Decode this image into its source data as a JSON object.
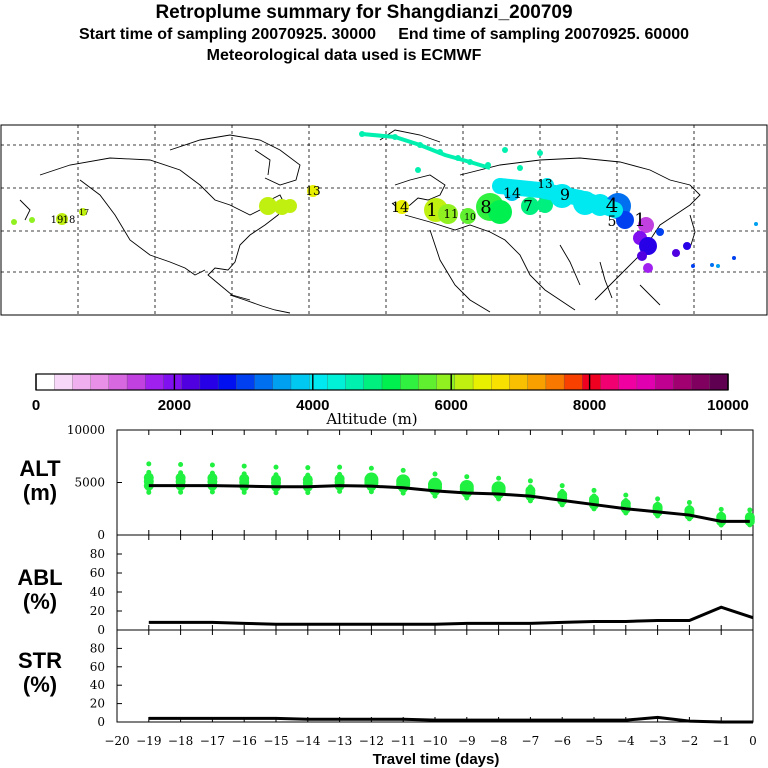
{
  "header": {
    "title": "Retroplume summary for Shangdianzi_200709",
    "sampling_line": "Start time of sampling 20070925. 30000     End time of sampling 20070925. 60000",
    "met_line": "Meteorological data used is ECMWF"
  },
  "colorbar": {
    "ticks": [
      "0",
      "2000",
      "4000",
      "6000",
      "8000",
      "10000"
    ],
    "label": "Altitude (m)",
    "colors": [
      "#ffffff",
      "#f8d8f8",
      "#f0b0f0",
      "#e890e8",
      "#d868e0",
      "#c040e0",
      "#a020f0",
      "#8010f0",
      "#5000e0",
      "#2800e8",
      "#0010f0",
      "#0040f0",
      "#0070f0",
      "#00a0f0",
      "#00c8f0",
      "#00e8f0",
      "#00f0d8",
      "#00f0b0",
      "#00f080",
      "#00f050",
      "#30f040",
      "#60f030",
      "#90f020",
      "#c0f010",
      "#e8f000",
      "#f8e000",
      "#f8c000",
      "#f8a000",
      "#f87800",
      "#f84000",
      "#f00020",
      "#f00070",
      "#f000a0",
      "#e000b0",
      "#c00090",
      "#a00070",
      "#800060",
      "#600050"
    ]
  },
  "map": {
    "labels": [
      {
        "t": "13",
        "c": "#e8f000"
      },
      {
        "t": "19",
        "c": "#90f020"
      },
      {
        "t": "18",
        "c": "#90f020"
      },
      {
        "t": "17",
        "c": "#c0f010"
      },
      {
        "t": "14",
        "c": "#c0f010"
      },
      {
        "t": "1",
        "c": "#c0f010"
      },
      {
        "t": "11",
        "c": "#60f030"
      },
      {
        "t": "10",
        "c": "#30f040"
      },
      {
        "t": "8",
        "c": "#00f050"
      },
      {
        "t": "7",
        "c": "#00f080"
      },
      {
        "t": "14",
        "c": "#00c8f0"
      },
      {
        "t": "13",
        "c": "#00e8f0"
      },
      {
        "t": "9",
        "c": "#00e8f0"
      },
      {
        "t": "4",
        "c": "#0070f0"
      },
      {
        "t": "5",
        "c": "#0040f0"
      },
      {
        "t": "1",
        "c": "#c040e0"
      }
    ]
  },
  "chart_data": [
    {
      "type": "line",
      "panel": "ALT",
      "ylabel": "ALT (m)",
      "ylim": [
        0,
        10000
      ],
      "yticks": [
        0,
        5000,
        10000
      ],
      "x": [
        -19,
        -18,
        -17,
        -16,
        -15,
        -14,
        -13,
        -12,
        -11,
        -10,
        -9,
        -8,
        -7,
        -6,
        -5,
        -4,
        -3,
        -2,
        -1,
        -0.1
      ],
      "values": [
        4700,
        4700,
        4700,
        4650,
        4600,
        4600,
        4700,
        4650,
        4500,
        4200,
        4000,
        3900,
        3700,
        3300,
        2900,
        2500,
        2200,
        1900,
        1300,
        1300
      ],
      "series_name": "Mean altitude",
      "point_color": "#20f040"
    },
    {
      "type": "line",
      "panel": "ABL",
      "ylabel": "ABL (%)",
      "ylim": [
        0,
        100
      ],
      "yticks": [
        0,
        20,
        40,
        60,
        80
      ],
      "x": [
        -19,
        -18,
        -17,
        -16,
        -15,
        -14,
        -13,
        -12,
        -11,
        -10,
        -9,
        -8,
        -7,
        -6,
        -5,
        -4,
        -3,
        -2,
        -1,
        0
      ],
      "values": [
        8,
        8,
        8,
        7,
        6,
        6,
        6,
        6,
        6,
        6,
        7,
        7,
        7,
        8,
        9,
        9,
        10,
        10,
        24,
        13
      ]
    },
    {
      "type": "line",
      "panel": "STR",
      "ylabel": "STR (%)",
      "ylim": [
        0,
        100
      ],
      "yticks": [
        0,
        20,
        40,
        60,
        80
      ],
      "x": [
        -19,
        -18,
        -17,
        -16,
        -15,
        -14,
        -13,
        -12,
        -11,
        -10,
        -9,
        -8,
        -7,
        -6,
        -5,
        -4,
        -3,
        -2,
        -1,
        0
      ],
      "values": [
        4,
        4,
        4,
        4,
        4,
        3,
        3,
        3,
        3,
        2,
        2,
        2,
        2,
        2,
        2,
        2,
        5,
        1,
        0,
        0
      ]
    }
  ],
  "xaxis": {
    "ticks": [
      -20,
      -19,
      -18,
      -17,
      -16,
      -15,
      -14,
      -13,
      -12,
      -11,
      -10,
      -9,
      -8,
      -7,
      -6,
      -5,
      -4,
      -3,
      -2,
      -1,
      0
    ],
    "label": "Travel time (days)",
    "xlim": [
      -20,
      0
    ]
  },
  "panel_labels": {
    "alt": [
      "ALT",
      "(m)"
    ],
    "abl": [
      "ABL",
      "(%)"
    ],
    "str": [
      "STR",
      "(%)"
    ]
  }
}
